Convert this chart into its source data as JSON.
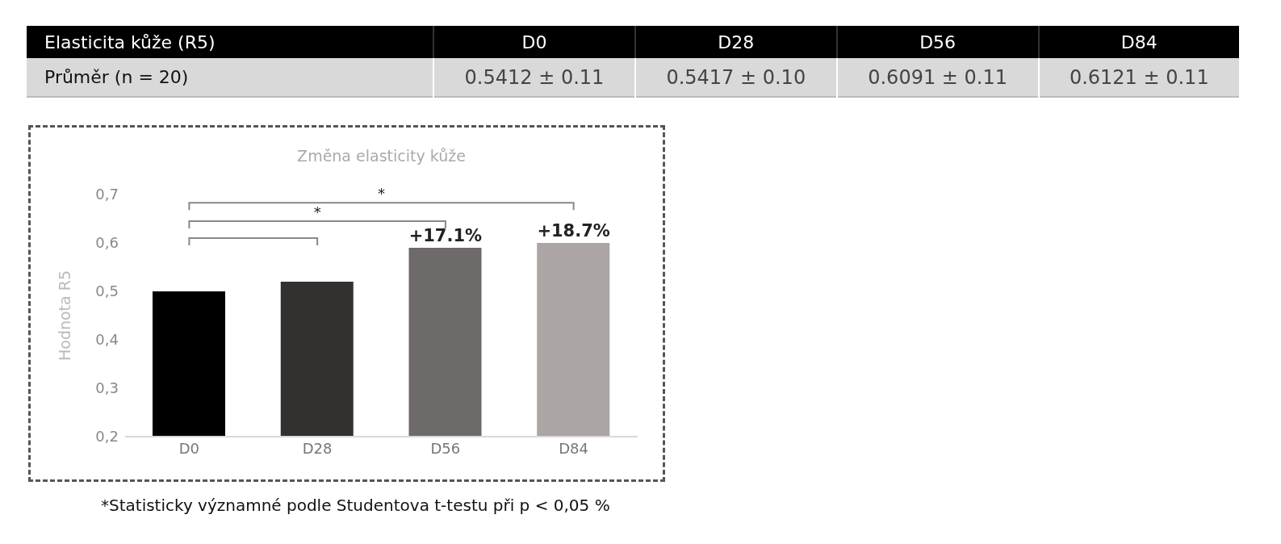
{
  "chart_data": {
    "type": "bar",
    "title": "Změna elasticity kůže",
    "ylabel": "Hodnota R5",
    "categories": [
      "D0",
      "D28",
      "D56",
      "D84"
    ],
    "values": [
      0.5,
      0.52,
      0.59,
      0.6
    ],
    "colors": [
      "#000000",
      "#333130",
      "#6e6a69",
      "#aba5a4"
    ],
    "ylim": [
      0.2,
      0.7
    ],
    "yticks": [
      {
        "value": 0.2,
        "label": "0,2"
      },
      {
        "value": 0.3,
        "label": "0,3"
      },
      {
        "value": 0.4,
        "label": "0,4"
      },
      {
        "value": 0.5,
        "label": "0,5"
      },
      {
        "value": 0.6,
        "label": "0,6"
      },
      {
        "value": 0.7,
        "label": "0,7"
      }
    ],
    "grid": false,
    "annotations": [
      "Elasticita kůže (R5)",
      "Průměr (n = 20)",
      "0.5412 ± 0.11",
      "0.5417 ± 0.10",
      "0.6091 ± 0.11",
      "0.6121 ± 0.11",
      "*",
      "*",
      "*Statisticky významné podle Studentova t-testu při p < 0,05 %",
      {
        "text": "+17.1%",
        "x": "D56",
        "y": 0.59
      },
      {
        "text": "+18.7%",
        "x": "D84",
        "y": 0.6
      }
    ]
  }
}
